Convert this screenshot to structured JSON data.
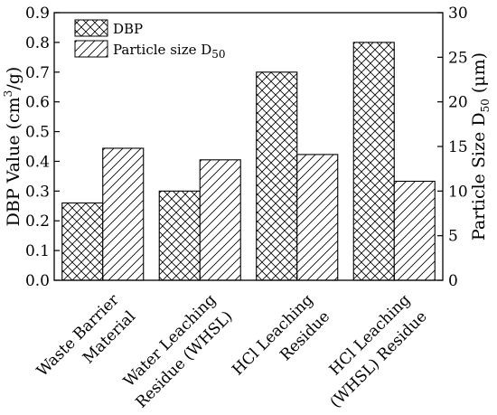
{
  "chart_data": {
    "type": "bar",
    "categories": [
      [
        "Waste Barrier",
        "Material"
      ],
      [
        "Water Leaching",
        "Residue (WHSL)"
      ],
      [
        "HCl Leaching",
        "Residue"
      ],
      [
        "HCl Leaching",
        "(WHSL) Residue"
      ]
    ],
    "series": [
      {
        "name": "DBP",
        "axis": "left",
        "pattern": "crosshatch",
        "values": [
          0.26,
          0.3,
          0.7,
          0.8
        ]
      },
      {
        "name": "Particle size D50",
        "axis": "right",
        "pattern": "diagonal",
        "values": [
          14.8,
          13.5,
          14.1,
          11.1
        ]
      }
    ],
    "legend": {
      "position": "top-left",
      "items": [
        {
          "text": "DBP",
          "sub": ""
        },
        {
          "text": "Particle size D",
          "sub": "50"
        }
      ]
    },
    "y_left": {
      "label_parts": {
        "pre": "DBP Value (cm",
        "sup": "3",
        "post": "/g)"
      },
      "lim": [
        0.0,
        0.9
      ],
      "ticks": [
        "0.0",
        "0.1",
        "0.2",
        "0.3",
        "0.4",
        "0.5",
        "0.6",
        "0.7",
        "0.8",
        "0.9"
      ]
    },
    "y_right": {
      "label_parts": {
        "pre": "Particle Size D",
        "sub": "50",
        "post": " (μm)"
      },
      "lim": [
        0,
        30
      ],
      "ticks": [
        "0",
        "5",
        "10",
        "15",
        "20",
        "25",
        "30"
      ]
    },
    "grid": false
  }
}
